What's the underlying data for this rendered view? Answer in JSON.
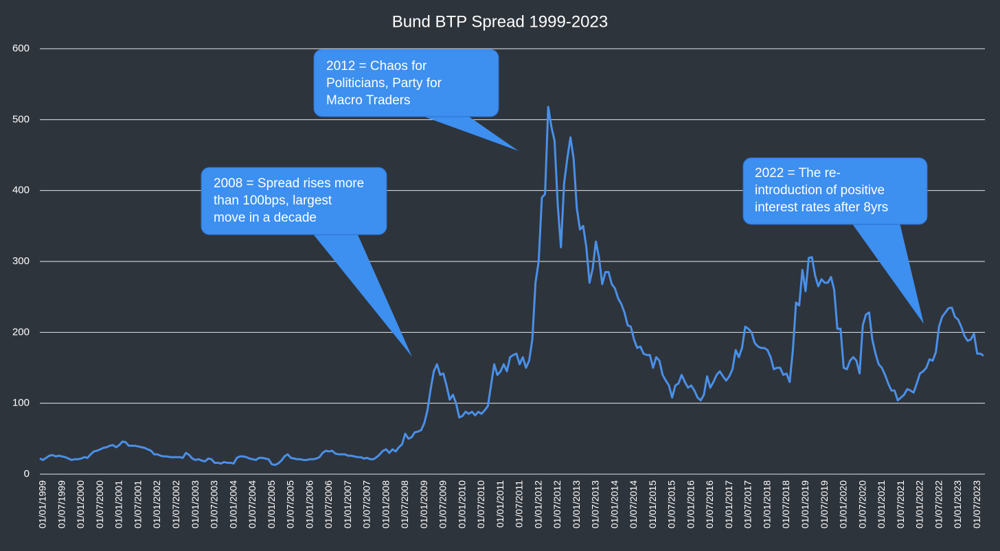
{
  "chart_data": {
    "type": "line",
    "title": "Bund BTP Spread 1999-2023",
    "categories": [
      "01/01/1999",
      null,
      null,
      null,
      null,
      null,
      "01/07/1999",
      null,
      null,
      null,
      null,
      null,
      "01/01/2000",
      null,
      null,
      null,
      null,
      null,
      "01/07/2000",
      null,
      null,
      null,
      null,
      null,
      "01/01/2001",
      null,
      null,
      null,
      null,
      null,
      "01/07/2001",
      null,
      null,
      null,
      null,
      null,
      "01/01/2002",
      null,
      null,
      null,
      null,
      null,
      "01/07/2002",
      null,
      null,
      null,
      null,
      null,
      "01/01/2003",
      null,
      null,
      null,
      null,
      null,
      "01/07/2003",
      null,
      null,
      null,
      null,
      null,
      "01/01/2004",
      null,
      null,
      null,
      null,
      null,
      "01/07/2004",
      null,
      null,
      null,
      null,
      null,
      "01/01/2005",
      null,
      null,
      null,
      null,
      null,
      "01/07/2005",
      null,
      null,
      null,
      null,
      null,
      "01/01/2006",
      null,
      null,
      null,
      null,
      null,
      "01/07/2006",
      null,
      null,
      null,
      null,
      null,
      "01/01/2007",
      null,
      null,
      null,
      null,
      null,
      "01/07/2007",
      null,
      null,
      null,
      null,
      null,
      "01/01/2008",
      null,
      null,
      null,
      null,
      null,
      "01/07/2008",
      null,
      null,
      null,
      null,
      null,
      "01/01/2009",
      null,
      null,
      null,
      null,
      null,
      "01/07/2009",
      null,
      null,
      null,
      null,
      null,
      "01/01/2010",
      null,
      null,
      null,
      null,
      null,
      "01/07/2010",
      null,
      null,
      null,
      null,
      null,
      "01/01/2011",
      null,
      null,
      null,
      null,
      null,
      "01/07/2011",
      null,
      null,
      null,
      null,
      null,
      "01/01/2012",
      null,
      null,
      null,
      null,
      null,
      "01/07/2012",
      null,
      null,
      null,
      null,
      null,
      "01/01/2013",
      null,
      null,
      null,
      null,
      null,
      "01/07/2013",
      null,
      null,
      null,
      null,
      null,
      "01/01/2014",
      null,
      null,
      null,
      null,
      null,
      "01/07/2014",
      null,
      null,
      null,
      null,
      null,
      "01/01/2015",
      null,
      null,
      null,
      null,
      null,
      "01/07/2015",
      null,
      null,
      null,
      null,
      null,
      "01/01/2016",
      null,
      null,
      null,
      null,
      null,
      "01/07/2016",
      null,
      null,
      null,
      null,
      null,
      "01/01/2017",
      null,
      null,
      null,
      null,
      null,
      "01/07/2017",
      null,
      null,
      null,
      null,
      null,
      "01/01/2018",
      null,
      null,
      null,
      null,
      null,
      "01/07/2018",
      null,
      null,
      null,
      null,
      null,
      "01/01/2019",
      null,
      null,
      null,
      null,
      null,
      "01/07/2019",
      null,
      null,
      null,
      null,
      null,
      "01/01/2020",
      null,
      null,
      null,
      null,
      null,
      "01/07/2020",
      null,
      null,
      null,
      null,
      null,
      "01/01/2021",
      null,
      null,
      null,
      null,
      null,
      "01/07/2021",
      null,
      null,
      null,
      null,
      null,
      "01/01/2022",
      null,
      null,
      null,
      null,
      null,
      "01/07/2022",
      null,
      null,
      null,
      null,
      null,
      "01/01/2023",
      null,
      null,
      null,
      null,
      null,
      "01/07/2023",
      null,
      null,
      null
    ],
    "series": [
      {
        "color": "#4a90e8",
        "values": [
          22,
          20,
          23,
          26,
          27,
          25,
          26,
          25,
          24,
          22,
          20,
          21,
          21,
          22,
          24,
          23,
          28,
          32,
          33,
          35,
          37,
          38,
          40,
          41,
          38,
          41,
          46,
          45,
          40,
          40,
          40,
          39,
          38,
          37,
          35,
          33,
          28,
          28,
          26,
          25,
          25,
          24,
          24,
          24,
          24,
          23,
          30,
          27,
          22,
          20,
          21,
          19,
          18,
          22,
          21,
          16,
          16,
          15,
          17,
          16,
          16,
          15,
          23,
          25,
          25,
          24,
          22,
          21,
          20,
          23,
          23,
          22,
          21,
          14,
          13,
          15,
          19,
          25,
          28,
          23,
          22,
          21,
          21,
          20,
          20,
          21,
          21,
          22,
          24,
          30,
          33,
          32,
          33,
          29,
          28,
          28,
          28,
          26,
          26,
          25,
          24,
          24,
          22,
          23,
          21,
          21,
          24,
          28,
          33,
          35,
          30,
          35,
          32,
          38,
          42,
          57,
          50,
          52,
          59,
          60,
          62,
          72,
          90,
          120,
          145,
          155,
          140,
          142,
          125,
          105,
          112,
          100,
          80,
          82,
          88,
          85,
          88,
          83,
          88,
          85,
          90,
          96,
          125,
          155,
          140,
          145,
          155,
          145,
          165,
          168,
          170,
          155,
          165,
          150,
          160,
          190,
          270,
          300,
          390,
          395,
          518,
          490,
          470,
          380,
          320,
          410,
          445,
          475,
          445,
          375,
          345,
          350,
          320,
          270,
          290,
          328,
          305,
          268,
          285,
          285,
          268,
          262,
          248,
          240,
          228,
          210,
          208,
          190,
          178,
          180,
          170,
          168,
          168,
          150,
          165,
          160,
          140,
          132,
          125,
          108,
          125,
          128,
          140,
          130,
          122,
          125,
          118,
          108,
          104,
          112,
          138,
          122,
          130,
          140,
          145,
          138,
          132,
          138,
          148,
          175,
          165,
          178,
          208,
          205,
          200,
          185,
          180,
          178,
          178,
          175,
          165,
          148,
          150,
          150,
          140,
          142,
          130,
          175,
          242,
          238,
          288,
          258,
          305,
          306,
          280,
          265,
          275,
          270,
          270,
          278,
          260,
          205,
          205,
          150,
          148,
          160,
          165,
          160,
          142,
          210,
          225,
          228,
          190,
          170,
          155,
          150,
          140,
          128,
          118,
          118,
          104,
          108,
          112,
          120,
          118,
          115,
          128,
          142,
          145,
          150,
          162,
          160,
          172,
          208,
          222,
          228,
          234,
          235,
          222,
          218,
          208,
          195,
          188,
          190,
          198,
          170,
          170,
          167
        ]
      }
    ],
    "ylim": [
      0,
      600
    ],
    "yticks": [
      0,
      100,
      200,
      300,
      400,
      500,
      600
    ],
    "grid": true,
    "annotations": [
      {
        "text": [
          "2008 = Spread rises more",
          "than 100bps, largest",
          "move in a decade"
        ]
      },
      {
        "text": [
          "2012 = Chaos for",
          "Politicians, Party for",
          "Macro Traders"
        ]
      },
      {
        "text": [
          "2022 = The re-",
          "introduction of positive",
          "interest rates after 8yrs"
        ]
      }
    ]
  }
}
